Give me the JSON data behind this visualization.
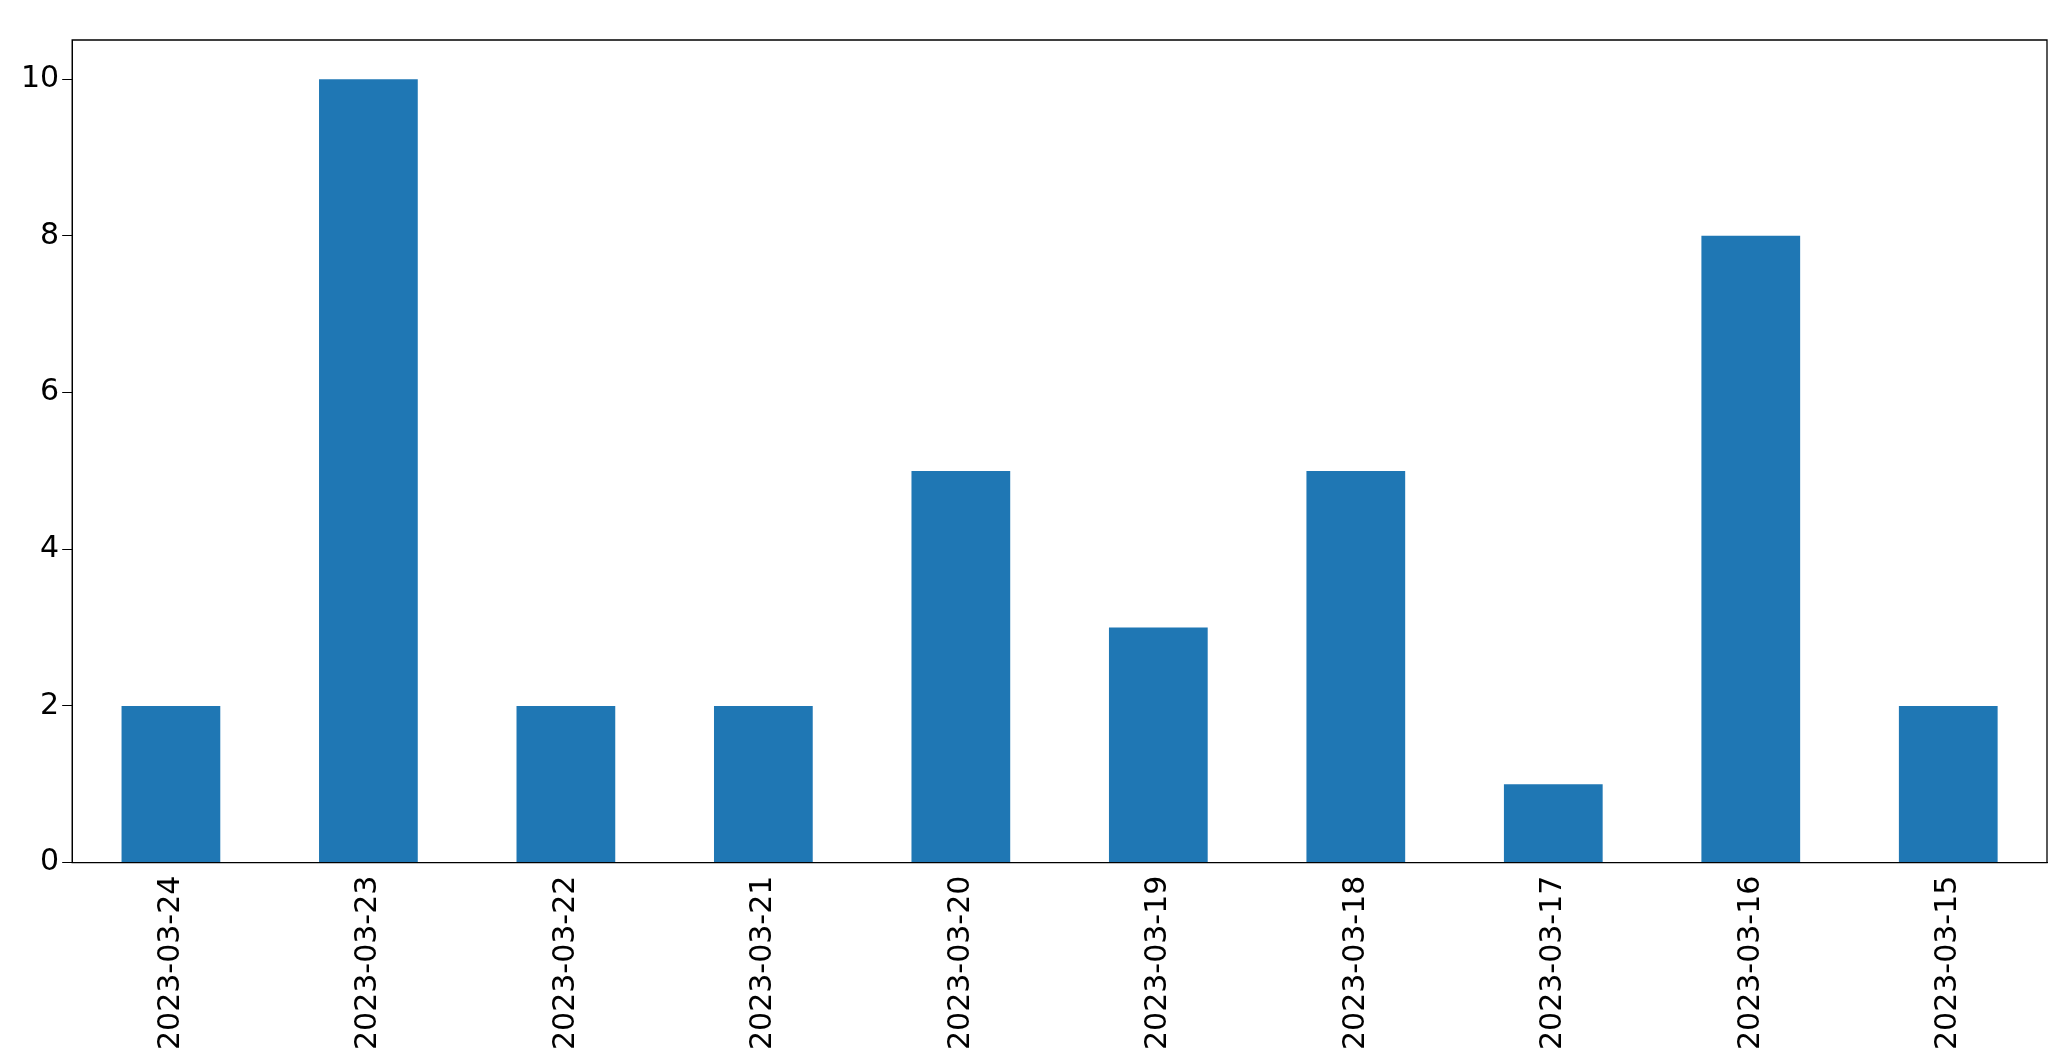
{
  "chart_data": {
    "type": "bar",
    "categories": [
      "2023-03-24",
      "2023-03-23",
      "2023-03-22",
      "2023-03-21",
      "2023-03-20",
      "2023-03-19",
      "2023-03-18",
      "2023-03-17",
      "2023-03-16",
      "2023-03-15"
    ],
    "values": [
      2,
      10,
      2,
      2,
      5,
      3,
      5,
      1,
      8,
      2
    ],
    "color": "#1f77b4",
    "ylim": [
      0,
      10.5
    ],
    "yticks": [
      0,
      2,
      4,
      6,
      8,
      10
    ]
  }
}
